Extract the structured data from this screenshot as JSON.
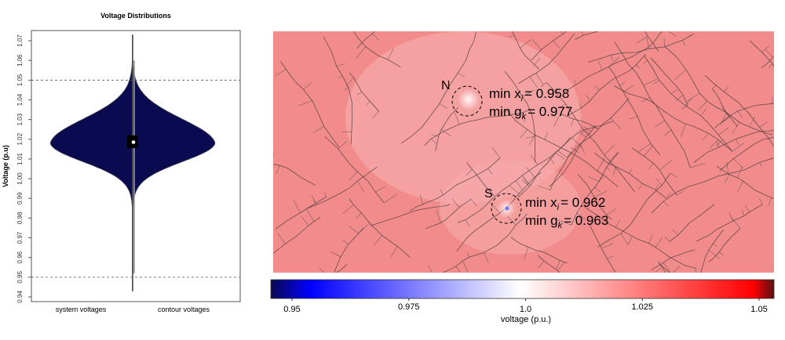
{
  "chart_data": [
    {
      "type": "violin",
      "title": "Voltage Distributions",
      "ylabel": "Voltage (p.u)",
      "ylim": [
        0.938,
        1.076
      ],
      "yticks": [
        "0.94",
        "0.95",
        "0.96",
        "0.97",
        "0.98",
        "0.99",
        "1.00",
        "1.01",
        "1.02",
        "1.03",
        "1.04",
        "1.05",
        "1.06",
        "1.07"
      ],
      "ytick_values": [
        0.94,
        0.95,
        0.96,
        0.97,
        0.98,
        0.99,
        1.0,
        1.01,
        1.02,
        1.03,
        1.04,
        1.05,
        1.06,
        1.07
      ],
      "reference_lines": [
        0.95,
        1.05
      ],
      "categories": [
        "system voltages",
        "contour voltages"
      ],
      "series": [
        {
          "name": "system voltages",
          "side": "left",
          "mode": 1.018,
          "min": 0.943,
          "max": 1.073,
          "sd_upper": 0.0125,
          "sd_lower": 0.0095
        },
        {
          "name": "contour voltages",
          "side": "right",
          "mode": 1.018,
          "min": 0.952,
          "max": 1.06,
          "sd_upper": 0.0125,
          "sd_lower": 0.0095
        }
      ],
      "box": {
        "q1": 1.0155,
        "median": 1.0185,
        "q3": 1.022
      }
    },
    {
      "type": "heatmap",
      "colorbar": {
        "label": "voltage (p.u.)",
        "range": [
          0.9465,
          1.0545
        ],
        "ticks": [
          "0.95",
          "0.975",
          "1.0",
          "1.025",
          "1.05"
        ],
        "tick_values": [
          0.95,
          0.975,
          1.0,
          1.025,
          1.05
        ],
        "colors": {
          "low_dark": "#0a0a50",
          "low": "#0000ff",
          "mid": "#ffffff",
          "high": "#ff0000",
          "high_dark": "#5a1010"
        }
      },
      "annotations": [
        {
          "label": "N",
          "min_x_label": "min x",
          "min_x_sub": "i",
          "min_x_value": "= 0.958",
          "min_g_label": "min g",
          "min_g_sub": "k",
          "min_g_value": "= 0.977"
        },
        {
          "label": "S",
          "min_x_label": "min x",
          "min_x_sub": "i",
          "min_x_value": "= 0.962",
          "min_g_label": "min g",
          "min_g_sub": "k",
          "min_g_value": "= 0.963"
        }
      ],
      "background_voltage": 1.02
    }
  ]
}
